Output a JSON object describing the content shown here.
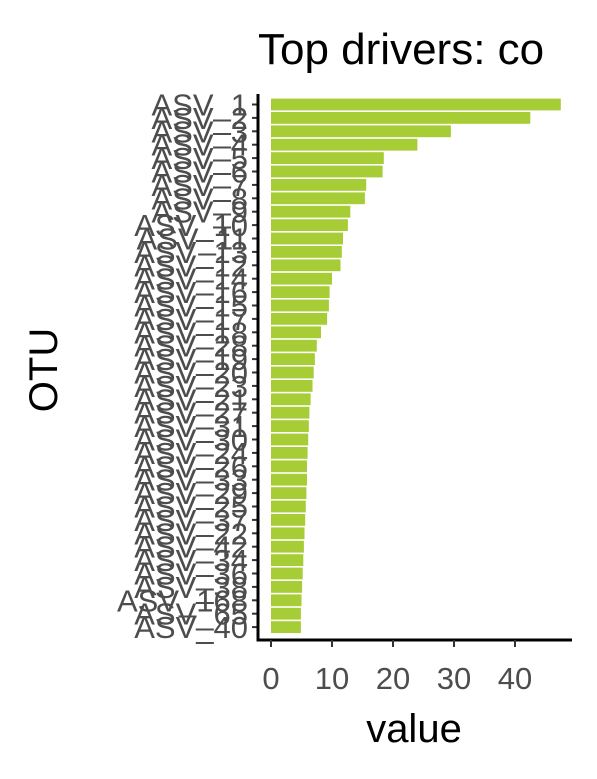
{
  "chart_data": {
    "type": "bar",
    "orientation": "horizontal",
    "title": "Top drivers: co",
    "xlabel": "value",
    "ylabel": "OTU",
    "xlim": [
      0,
      49
    ],
    "x_ticks": [
      "0",
      "10",
      "20",
      "30",
      "40"
    ],
    "bar_color": "#a6cd35",
    "grid": false,
    "legend": "none",
    "categories": [
      "ASV_1",
      "ASV_2",
      "ASV_3",
      "ASV_4",
      "ASV_5",
      "ASV_6",
      "ASV_7",
      "ASV_8",
      "ASV_9",
      "ASV_10",
      "ASV_11",
      "ASV_13",
      "ASV_12",
      "ASV_14",
      "ASV_16",
      "ASV_15",
      "ASV_17",
      "ASV_18",
      "ASV_28",
      "ASV_19",
      "ASV_20",
      "ASV_23",
      "ASV_21",
      "ASV_27",
      "ASV_31",
      "ASV_30",
      "ASV_24",
      "ASV_26",
      "ASV_33",
      "ASV_29",
      "ASV_25",
      "ASV_37",
      "ASV_22",
      "ASV_42",
      "ASV_34",
      "ASV_36",
      "ASV_38",
      "ASV_168",
      "ASV_65",
      "ASV_40"
    ],
    "values": [
      47.5,
      42.5,
      29.5,
      24.0,
      18.5,
      18.3,
      15.6,
      15.4,
      13.0,
      12.6,
      11.8,
      11.6,
      11.4,
      10.0,
      9.6,
      9.5,
      9.2,
      8.2,
      7.5,
      7.2,
      7.0,
      6.8,
      6.5,
      6.3,
      6.2,
      6.1,
      6.0,
      5.9,
      5.9,
      5.8,
      5.7,
      5.6,
      5.5,
      5.4,
      5.3,
      5.2,
      5.1,
      5.0,
      4.9,
      4.9
    ]
  }
}
